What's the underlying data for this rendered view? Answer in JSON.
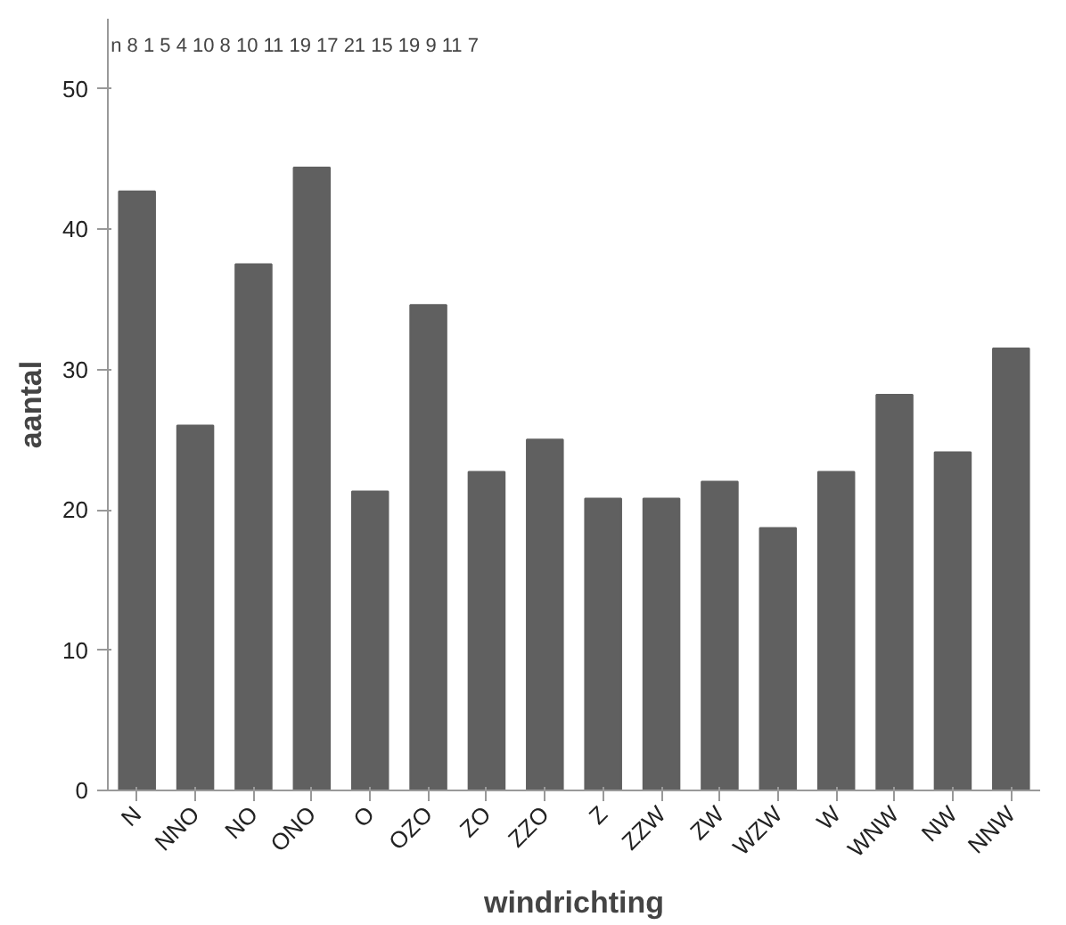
{
  "chart_data": {
    "type": "bar",
    "xlabel": "windrichting",
    "ylabel": "aantal",
    "categories": [
      "N",
      "NNO",
      "NO",
      "ONO",
      "O",
      "OZO",
      "ZO",
      "ZZO",
      "Z",
      "ZZW",
      "ZW",
      "WZW",
      "W",
      "WNW",
      "NW",
      "NNW"
    ],
    "values": [
      42.7,
      26.0,
      37.5,
      44.4,
      21.3,
      34.6,
      22.7,
      25.0,
      20.8,
      20.8,
      22.0,
      18.7,
      22.7,
      28.2,
      24.1,
      31.5
    ],
    "color": "#606060",
    "ylim": [
      0,
      55
    ],
    "yticks": [
      0,
      10,
      20,
      30,
      40,
      50
    ],
    "grid": false,
    "annotations": [
      "n   8     1     5     4    10     8    10    11    19    17    21    15    19     9    11     7"
    ]
  }
}
